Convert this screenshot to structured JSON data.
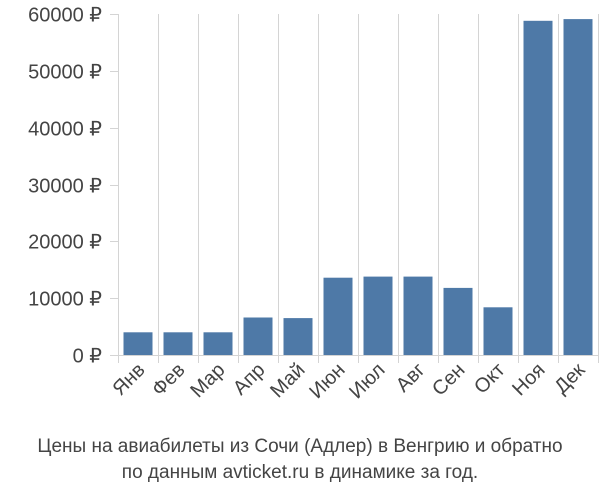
{
  "colors": {
    "bar": "#4e79a7",
    "grid": "#d4d4d4",
    "axis_text": "#444444"
  },
  "chart_data": {
    "type": "bar",
    "categories": [
      "Янв",
      "Фев",
      "Мар",
      "Апр",
      "Май",
      "Июн",
      "Июл",
      "Авг",
      "Сен",
      "Окт",
      "Ноя",
      "Дек"
    ],
    "values": [
      4000,
      4000,
      4000,
      6600,
      6500,
      13600,
      13800,
      13800,
      11800,
      8400,
      58800,
      59100
    ],
    "title": "",
    "xlabel": "",
    "ylabel": "",
    "ylim": [
      0,
      60000
    ],
    "yticks": [
      0,
      10000,
      20000,
      30000,
      40000,
      50000,
      60000
    ],
    "ytick_labels": [
      "0 ₽",
      "10000 ₽",
      "20000 ₽",
      "30000 ₽",
      "40000 ₽",
      "50000 ₽",
      "60000 ₽"
    ],
    "grid": "vertical",
    "legend": "none"
  },
  "caption": {
    "line1": "Цены на авиабилеты из Сочи (Адлер) в Венгрию и обратно",
    "line2": "по данным avticket.ru в динамике за год."
  }
}
